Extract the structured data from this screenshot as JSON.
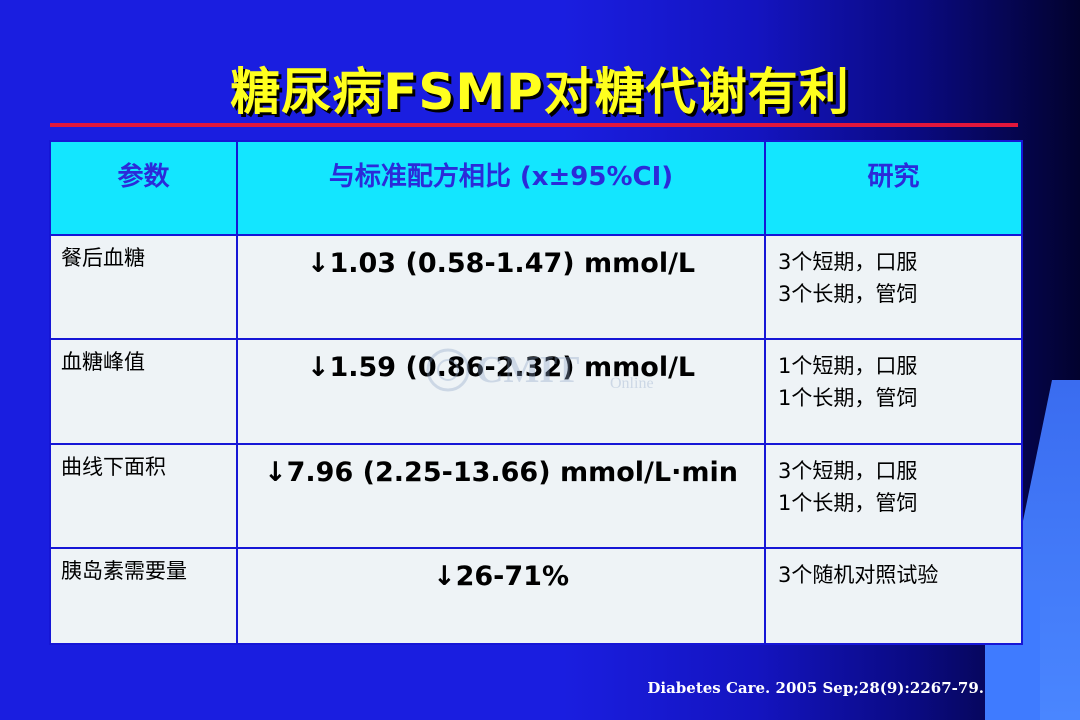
{
  "slide": {
    "title": "糖尿病FSMP对糖代谢有利",
    "citation": "Diabetes Care. 2005 Sep;28(9):2267-79.",
    "watermark": {
      "text": "CMIT",
      "subtext": "Online"
    }
  },
  "table": {
    "headers": [
      "参数",
      "与标准配方相比 (x±95%CI)",
      "研究"
    ],
    "rows": [
      {
        "param": "餐后血糖",
        "value": "↓1.03 (0.58-1.47) mmol/L",
        "study": [
          "3个短期，口服",
          "3个长期，管饲"
        ]
      },
      {
        "param": "血糖峰值",
        "value": "↓1.59 (0.86-2.32) mmol/L",
        "study": [
          "1个短期，口服",
          "1个长期，管饲"
        ]
      },
      {
        "param": "曲线下面积",
        "value": "↓7.96 (2.25-13.66) mmol/L·min",
        "study": [
          "3个短期，口服",
          "1个长期，管饲"
        ]
      },
      {
        "param": "胰岛素需要量",
        "value": "↓26-71%",
        "study": [
          "3个随机对照试验"
        ]
      }
    ]
  },
  "colors": {
    "title": "#ffff1e",
    "divider": "#e2173c",
    "header_bg": "#13e6ff",
    "header_text": "#2b2bd9",
    "cell_bg": "#eef3f6",
    "border": "#1616d6"
  }
}
